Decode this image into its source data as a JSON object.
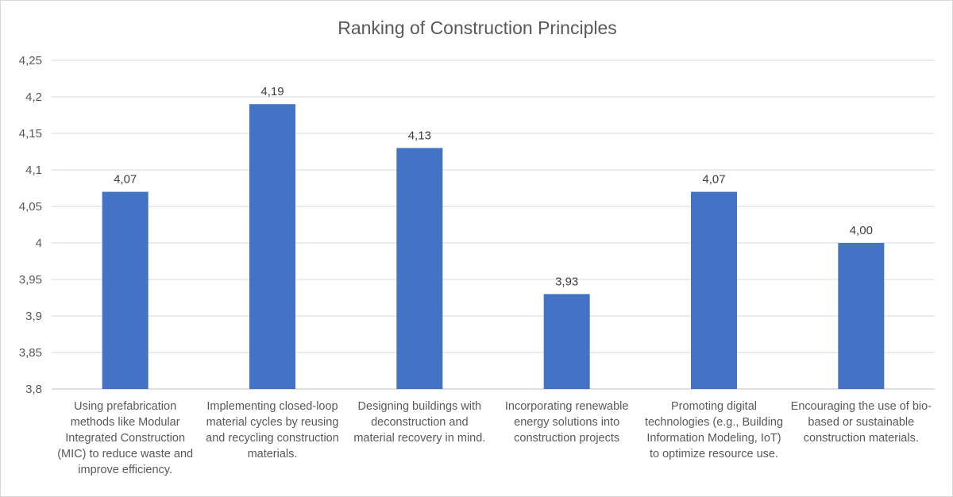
{
  "chart_data": {
    "type": "bar",
    "title": "Ranking of Construction Principles",
    "categories": [
      "Using prefabrication methods like Modular Integrated Construction (MIC) to reduce waste and improve efficiency.",
      "Implementing closed-loop material cycles by reusing and recycling construction materials.",
      "Designing buildings with deconstruction and material recovery in mind.",
      "Incorporating renewable energy solutions into construction projects",
      "Promoting digital technologies (e.g., Building Information Modeling, IoT) to optimize resource use.",
      "Encouraging the use of bio-based or sustainable construction materials."
    ],
    "values": [
      4.07,
      4.19,
      4.13,
      3.93,
      4.07,
      4.0
    ],
    "data_labels": [
      "4,07",
      "4,19",
      "4,13",
      "3,93",
      "4,07",
      "4,00"
    ],
    "y_ticks": [
      3.8,
      3.85,
      3.9,
      3.95,
      4.0,
      4.05,
      4.1,
      4.15,
      4.2,
      4.25
    ],
    "y_tick_labels": [
      "3,8",
      "3,85",
      "3,9",
      "3,95",
      "4",
      "4,05",
      "4,1",
      "4,15",
      "4,2",
      "4,25"
    ],
    "ylim": [
      3.8,
      4.25
    ],
    "xlabel": "",
    "ylabel": "",
    "grid": true,
    "legend": "none",
    "colors": {
      "bar": "#4472c4",
      "grid": "#d9d9d9"
    }
  }
}
